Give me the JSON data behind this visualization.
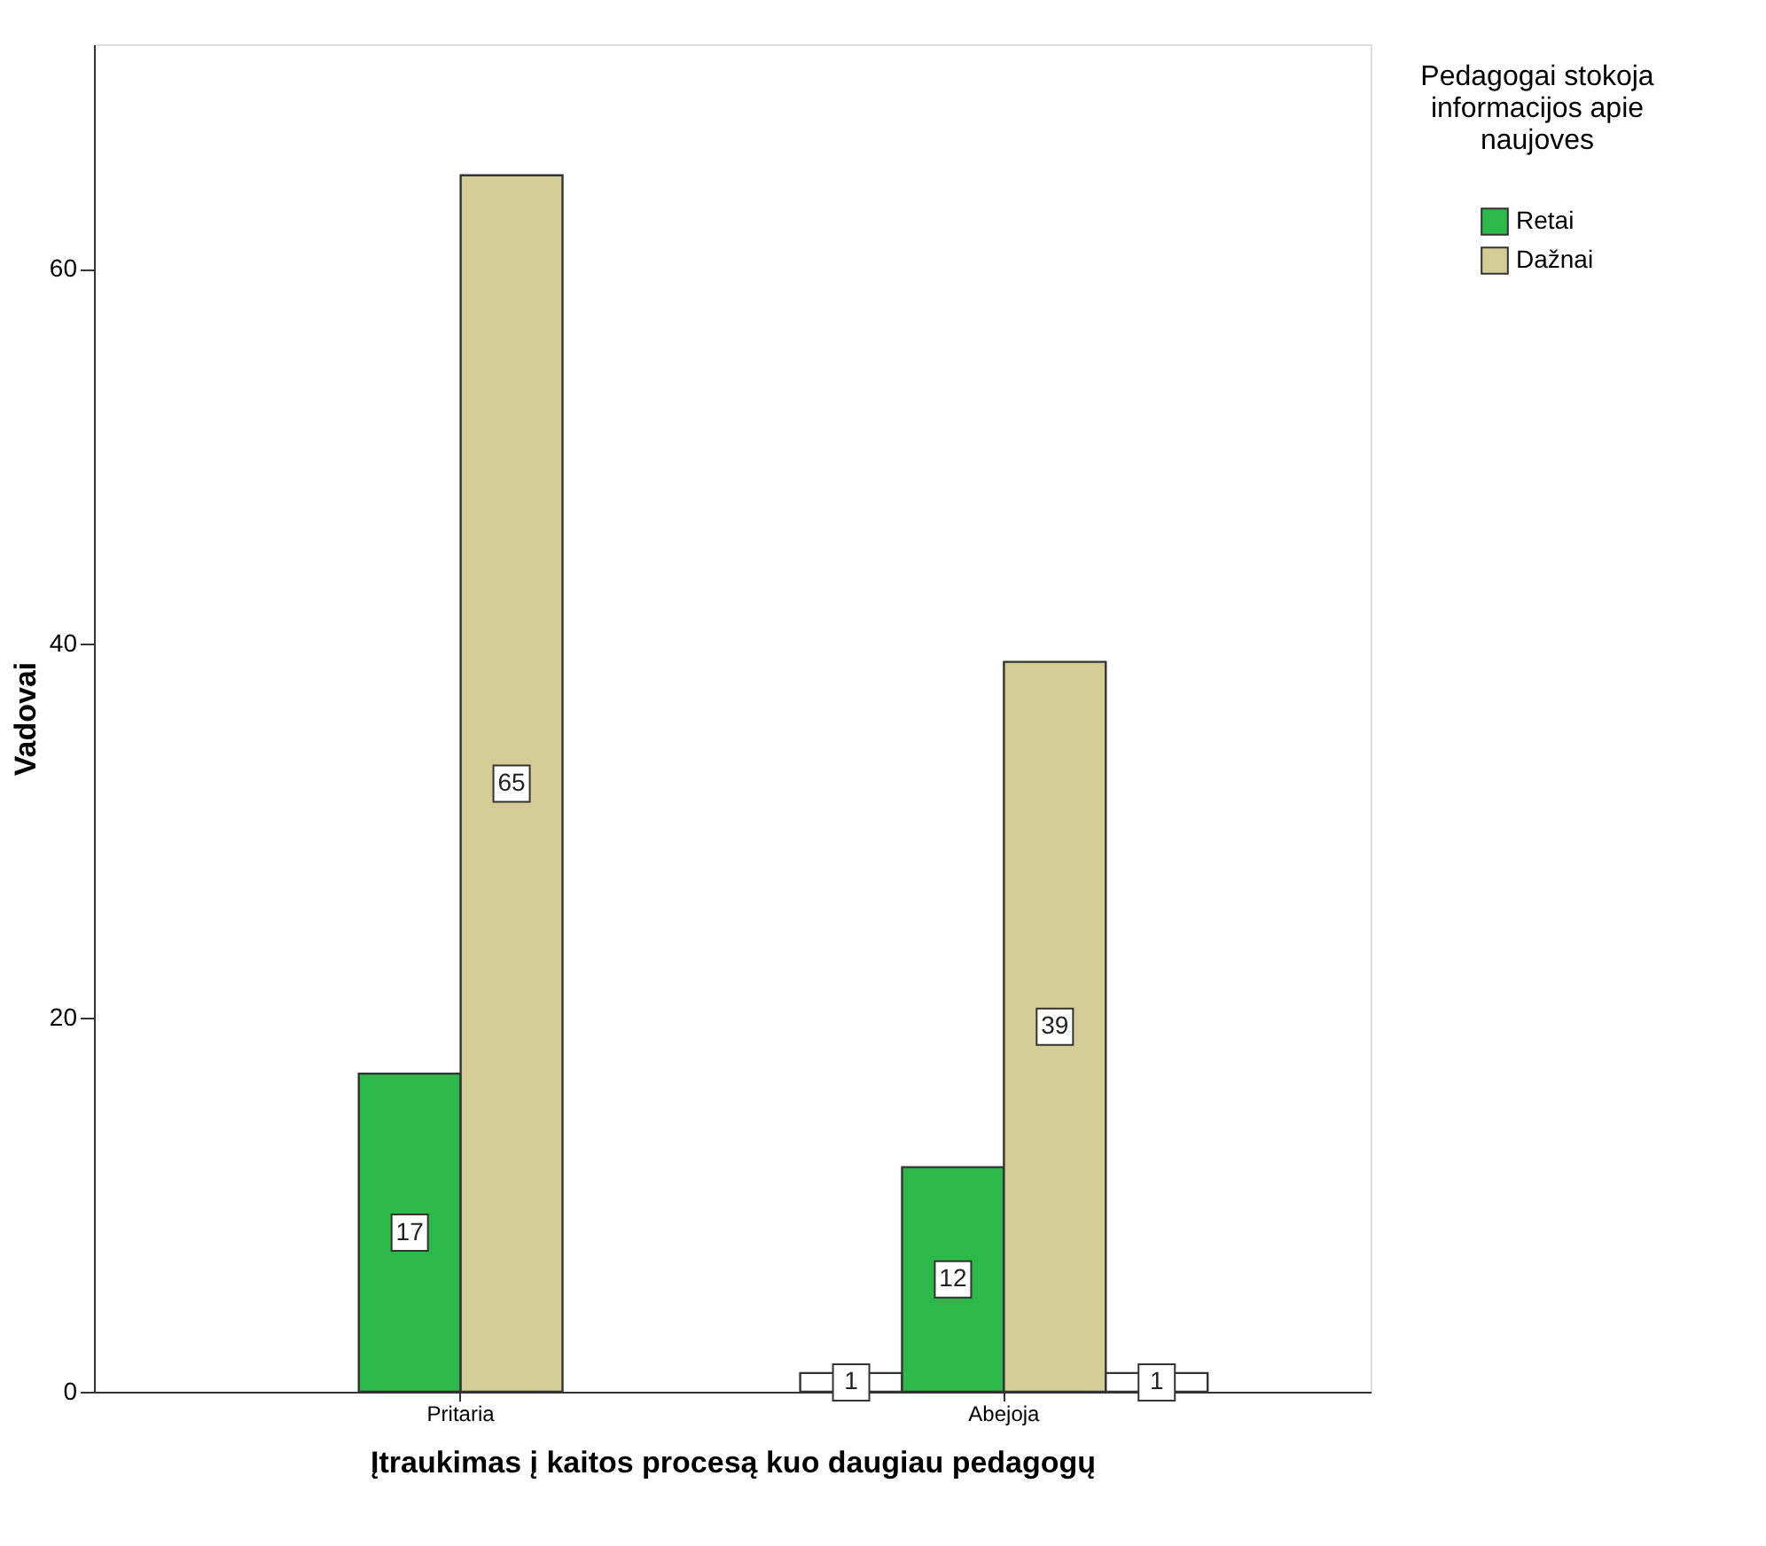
{
  "chart_data": {
    "type": "bar",
    "xlabel": "Įtraukimas į kaitos procesą kuo daugiau pedagogų",
    "ylabel": "Vadovai",
    "legend_title": "Pedagogai stokoja informacijos apie naujoves",
    "categories": [
      "Pritaria",
      "Abejoja"
    ],
    "series": [
      {
        "color": "#ffffff",
        "values": [
          null,
          1
        ]
      },
      {
        "name": "Retai",
        "color": "#2db84a",
        "values": [
          17,
          12
        ]
      },
      {
        "name": "Dažnai",
        "color": "#d3cc95",
        "values": [
          65,
          39
        ]
      },
      {
        "color": "#ffffff",
        "values": [
          null,
          1
        ]
      }
    ],
    "ylim": [
      0,
      72
    ],
    "yticks": [
      0,
      20,
      40,
      60
    ],
    "grid": false,
    "legend": "top right",
    "data_labels": true
  }
}
